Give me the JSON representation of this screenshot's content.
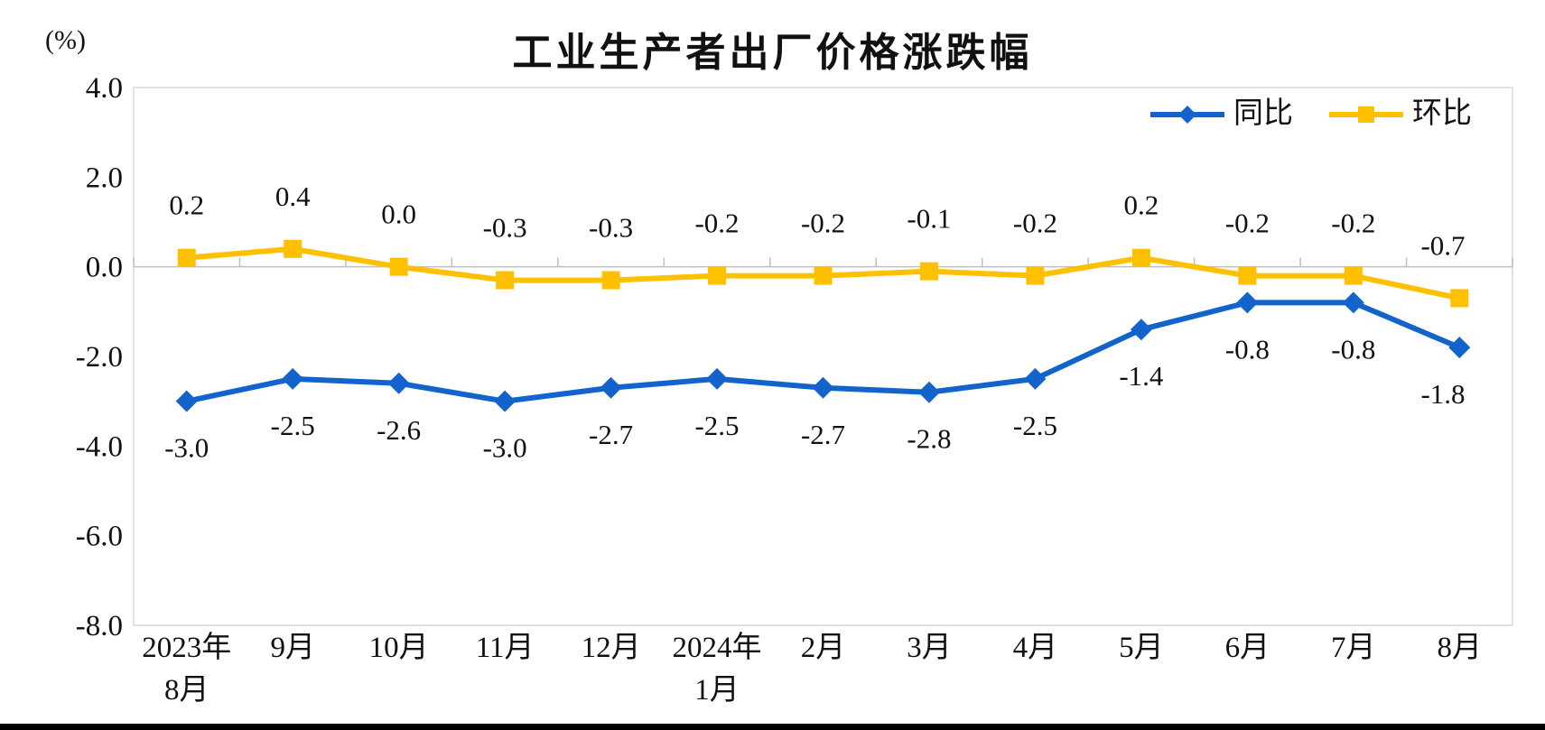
{
  "page": {
    "background": "#ffffff",
    "bottom_bar_color": "#000000"
  },
  "chart_data": {
    "type": "line",
    "title": "工业生产者出厂价格涨跌幅",
    "unit_label": "(%)",
    "categories": [
      "2023年\n8月",
      "9月",
      "10月",
      "11月",
      "12月",
      "2024年\n1月",
      "2月",
      "3月",
      "4月",
      "5月",
      "6月",
      "7月",
      "8月"
    ],
    "series": [
      {
        "name": "同比",
        "color": "#1264CC",
        "marker": "diamond",
        "label_position": "below",
        "values": [
          -3.0,
          -2.5,
          -2.6,
          -3.0,
          -2.7,
          -2.5,
          -2.7,
          -2.8,
          -2.5,
          -1.4,
          -0.8,
          -0.8,
          -1.8
        ],
        "labels": [
          "-3.0",
          "-2.5",
          "-2.6",
          "-3.0",
          "-2.7",
          "-2.5",
          "-2.7",
          "-2.8",
          "-2.5",
          "-1.4",
          "-0.8",
          "-0.8",
          "-1.8"
        ]
      },
      {
        "name": "环比",
        "color": "#FFC000",
        "marker": "square",
        "label_position": "above",
        "values": [
          0.2,
          0.4,
          0.0,
          -0.3,
          -0.3,
          -0.2,
          -0.2,
          -0.1,
          -0.2,
          0.2,
          -0.2,
          -0.2,
          -0.7
        ],
        "labels": [
          "0.2",
          "0.4",
          "0.0",
          "-0.3",
          "-0.3",
          "-0.2",
          "-0.2",
          "-0.1",
          "-0.2",
          "0.2",
          "-0.2",
          "-0.2",
          "-0.7"
        ]
      }
    ],
    "ylim": [
      -8.0,
      4.0
    ],
    "yticks": [
      "4.0",
      "2.0",
      "0.0",
      "-2.0",
      "-4.0",
      "-6.0",
      "-8.0"
    ],
    "grid": false,
    "legend_position": "top-right",
    "axis_color": "#BFBFBF",
    "border_color": "#D9D9D9",
    "text_color": "#111111"
  }
}
